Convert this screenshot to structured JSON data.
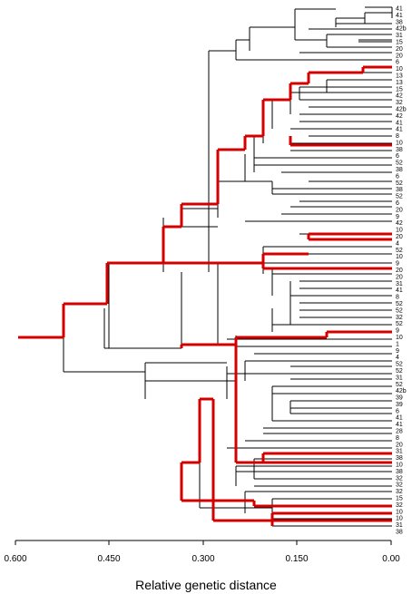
{
  "axis": {
    "title": "Relative genetic distance",
    "ticks": [
      "0.600",
      "0.450",
      "0.300",
      "0.150",
      "0.00"
    ]
  },
  "leaves": [
    "41",
    "41",
    "38",
    "42b",
    "31",
    "15",
    "20",
    "20",
    "6",
    "10",
    "13",
    "13",
    "15",
    "42",
    "32",
    "42b",
    "42",
    "41",
    "41",
    "8",
    "10",
    "38",
    "6",
    "52",
    "38",
    "6",
    "52",
    "38",
    "52",
    "6",
    "20",
    "9",
    "42",
    "10",
    "20",
    "4",
    "52",
    "10",
    "9",
    "20",
    "20",
    "31",
    "41",
    "8",
    "52",
    "52",
    "32",
    "52",
    "9",
    "10",
    "1",
    "9",
    "4",
    "52",
    "52",
    "31",
    "52",
    "42b",
    "39",
    "39",
    "6",
    "41",
    "41",
    "28",
    "8",
    "20",
    "31",
    "38",
    "10",
    "38",
    "32",
    "32",
    "32",
    "15",
    "32",
    "10",
    "10",
    "31",
    "38"
  ],
  "colors": {
    "highlight": "#d40000",
    "branch": "#000000"
  }
}
